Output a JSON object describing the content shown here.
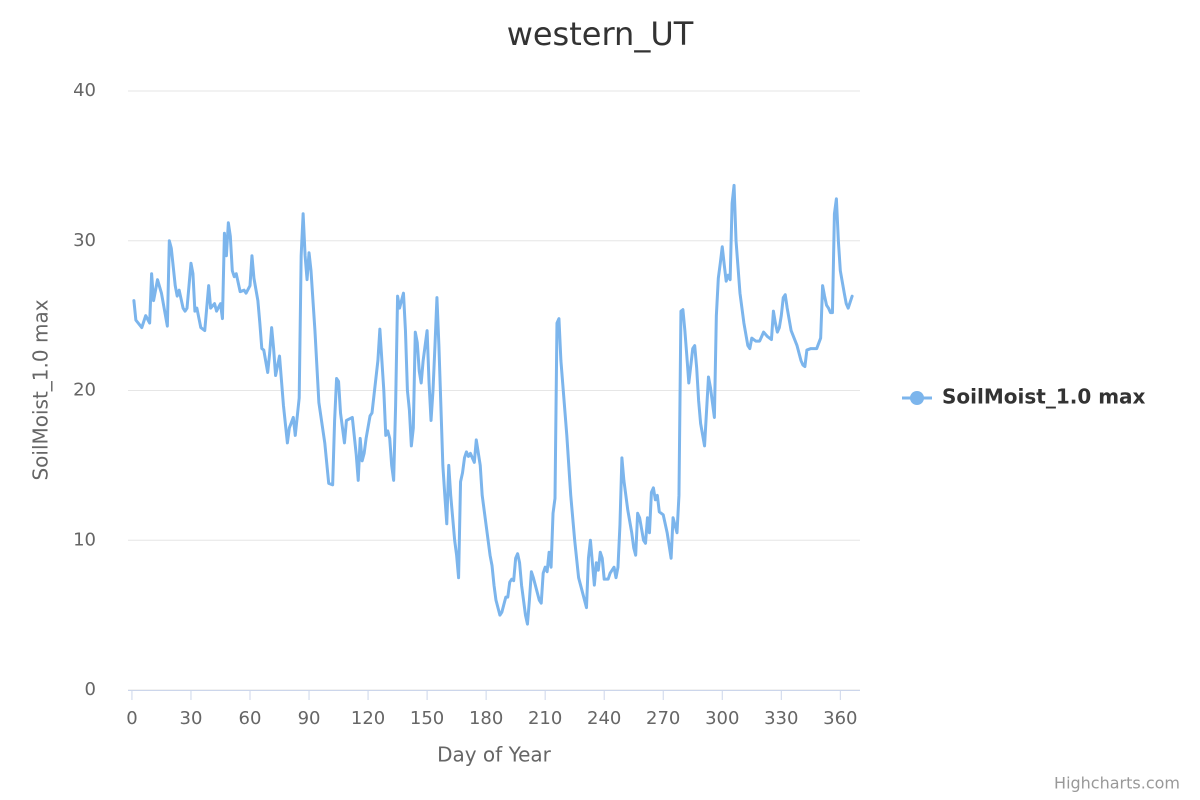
{
  "chart_data": {
    "type": "line",
    "title": "western_UT",
    "x_label": "Day of Year",
    "y_label": "SoilMoist_1.0 max",
    "credits": "Highcharts.com",
    "xlim": [
      -2,
      370
    ],
    "xticks": [
      0,
      30,
      60,
      90,
      120,
      150,
      180,
      210,
      240,
      270,
      300,
      330,
      360
    ],
    "ylim": [
      0,
      40
    ],
    "yticks": [
      0,
      10,
      20,
      30,
      40
    ],
    "grid": true,
    "legend": "right",
    "x": [
      1,
      2,
      5,
      7,
      9,
      10,
      11,
      13,
      15,
      18,
      19,
      20,
      22,
      23,
      24,
      26,
      27,
      28,
      30,
      31,
      32,
      33,
      35,
      37,
      39,
      40,
      42,
      43,
      45,
      46,
      47,
      48,
      49,
      50,
      51,
      52,
      53,
      55,
      57,
      58,
      60,
      61,
      62,
      64,
      65,
      66,
      67,
      69,
      70,
      71,
      72,
      73,
      75,
      77,
      79,
      80,
      82,
      83,
      85,
      86,
      87,
      88,
      89,
      90,
      91,
      93,
      95,
      98,
      100,
      102,
      103,
      104,
      105,
      106,
      108,
      109,
      112,
      114,
      115,
      116,
      117,
      118,
      119,
      121,
      122,
      125,
      126,
      128,
      129,
      130,
      131,
      132,
      133,
      134,
      135,
      136,
      138,
      139,
      140,
      141,
      142,
      143,
      144,
      145,
      146,
      147,
      148,
      150,
      151,
      152,
      153,
      154,
      155,
      156,
      157,
      158,
      159,
      160,
      161,
      162,
      164,
      165,
      166,
      167,
      168,
      169,
      170,
      171,
      172,
      173,
      174,
      175,
      177,
      178,
      180,
      182,
      183,
      184,
      185,
      187,
      188,
      190,
      191,
      192,
      193,
      194,
      195,
      196,
      197,
      198,
      199,
      200,
      201,
      202,
      203,
      204,
      205,
      207,
      208,
      209,
      210,
      211,
      212,
      213,
      214,
      215,
      216,
      217,
      218,
      221,
      223,
      225,
      227,
      230,
      231,
      232,
      233,
      234,
      235,
      236,
      237,
      238,
      239,
      240,
      242,
      243,
      244,
      245,
      246,
      247,
      248,
      249,
      250,
      252,
      254,
      255,
      256,
      257,
      258,
      260,
      261,
      262,
      263,
      264,
      265,
      266,
      267,
      268,
      270,
      272,
      274,
      275,
      276,
      277,
      278,
      279,
      280,
      281,
      282,
      283,
      285,
      286,
      287,
      288,
      289,
      291,
      293,
      294,
      296,
      297,
      298,
      299,
      300,
      301,
      302,
      303,
      304,
      305,
      306,
      307,
      309,
      311,
      313,
      314,
      315,
      317,
      319,
      321,
      323,
      325,
      326,
      327,
      328,
      329,
      330,
      331,
      332,
      333,
      335,
      338,
      340,
      341,
      342,
      343,
      345,
      347,
      348,
      350,
      351,
      352,
      353,
      354,
      355,
      356,
      357,
      358,
      359,
      360,
      362,
      363,
      364,
      366
    ],
    "series": [
      {
        "name": "SoilMoist_1.0 max",
        "color": "#7cb5ec",
        "values": [
          26,
          24.7,
          24.2,
          25,
          24.5,
          27.8,
          26,
          27.4,
          26.5,
          24.3,
          30,
          29.5,
          27,
          26.3,
          26.7,
          25.5,
          25.3,
          25.5,
          28.5,
          27.8,
          25.3,
          25.5,
          24.2,
          24,
          27,
          25.5,
          25.8,
          25.3,
          25.8,
          24.8,
          30.5,
          29,
          31.2,
          30.3,
          28,
          27.6,
          27.8,
          26.6,
          26.7,
          26.5,
          27,
          29,
          27.5,
          26,
          24.5,
          22.8,
          22.7,
          21.2,
          22.5,
          24.2,
          22.8,
          21,
          22.3,
          19,
          16.5,
          17.5,
          18.2,
          17,
          19.5,
          29,
          31.8,
          29,
          27.4,
          29.2,
          28,
          24,
          19.2,
          16.5,
          13.8,
          13.7,
          18,
          20.8,
          20.6,
          18.5,
          16.5,
          18,
          18.2,
          15.7,
          14,
          16.8,
          15.3,
          15.8,
          16.8,
          18.3,
          18.5,
          22,
          24.1,
          20,
          17,
          17.3,
          16.8,
          15,
          14,
          19,
          26.3,
          25.5,
          26.5,
          24,
          20,
          18.7,
          16.3,
          17.5,
          23.9,
          23.2,
          21.3,
          20.5,
          22,
          24,
          20.5,
          18,
          20,
          23,
          26.2,
          23,
          19,
          15,
          13,
          11.1,
          15,
          13,
          10,
          9,
          7.5,
          13.9,
          14.5,
          15.5,
          15.9,
          15.6,
          15.8,
          15.5,
          15.2,
          16.7,
          15,
          13,
          11,
          9,
          8.3,
          7,
          6,
          5,
          5.2,
          6.2,
          6.2,
          7.2,
          7.4,
          7.3,
          8.8,
          9.1,
          8.5,
          7,
          6,
          5,
          4.4,
          6,
          7.9,
          7.5,
          7,
          6,
          5.8,
          7.8,
          8.2,
          7.9,
          9.2,
          8.2,
          11.8,
          12.8,
          24.5,
          24.8,
          22,
          17,
          13,
          10,
          7.5,
          6,
          5.5,
          8.8,
          10,
          8.5,
          7,
          8.5,
          8,
          9.2,
          8.8,
          7.4,
          7.4,
          7.8,
          8,
          8.2,
          7.5,
          8.2,
          11,
          15.5,
          14,
          12,
          10.5,
          9.5,
          9,
          11.8,
          11.5,
          10,
          9.8,
          11.5,
          10.5,
          13.2,
          13.5,
          12.7,
          13,
          11.9,
          11.7,
          10.5,
          8.8,
          11.5,
          11,
          10.5,
          13,
          25.3,
          25.4,
          24,
          22.3,
          20.5,
          22.8,
          23,
          21.5,
          19.3,
          17.8,
          16.3,
          20.9,
          20.2,
          18.2,
          25,
          27.5,
          28.5,
          29.6,
          28.4,
          27.3,
          27.7,
          27.4,
          32.5,
          33.7,
          30,
          26.5,
          24.5,
          23,
          22.8,
          23.5,
          23.3,
          23.3,
          23.9,
          23.6,
          23.4,
          25.3,
          24.5,
          23.9,
          24.2,
          25,
          26.2,
          26.4,
          25.5,
          24,
          23,
          22,
          21.7,
          21.6,
          22.7,
          22.8,
          22.8,
          22.8,
          23.5,
          27,
          26.3,
          25.7,
          25.5,
          25.2,
          25.2,
          31.8,
          32.8,
          30,
          28,
          26.5,
          25.8,
          25.5,
          26.3
        ]
      }
    ]
  }
}
